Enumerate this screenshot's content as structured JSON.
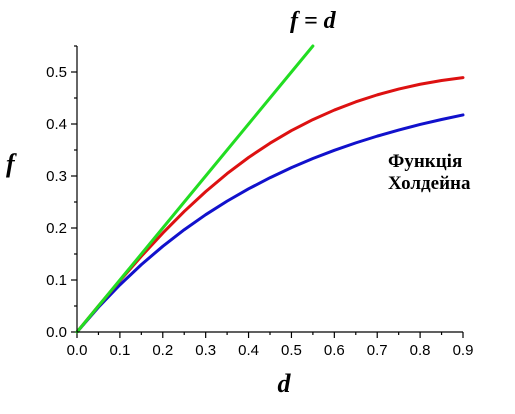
{
  "chart_data": {
    "type": "line",
    "xlabel": "d",
    "ylabel": "f",
    "xlim": [
      0.0,
      0.9
    ],
    "ylim": [
      0.0,
      0.55
    ],
    "xticks": [
      "0.0",
      "0.1",
      "0.2",
      "0.3",
      "0.4",
      "0.5",
      "0.6",
      "0.7",
      "0.8",
      "0.9"
    ],
    "yticks": [
      "0.0",
      "0.1",
      "0.2",
      "0.3",
      "0.4",
      "0.5"
    ],
    "grid": false,
    "annotations": [
      {
        "text": "f = d",
        "target": "green",
        "style": "italic-equation"
      },
      {
        "text": "Функція",
        "target": "red"
      },
      {
        "text": "Холдейна",
        "target": "red"
      }
    ],
    "series": [
      {
        "color": "#22dd22",
        "x": [
          0.0,
          0.1,
          0.2,
          0.3,
          0.4,
          0.5,
          0.55
        ],
        "y": [
          0.0,
          0.1,
          0.2,
          0.3,
          0.4,
          0.5,
          0.55
        ]
      },
      {
        "color": "#dd1111",
        "x": [
          0.0,
          0.05,
          0.1,
          0.15,
          0.2,
          0.25,
          0.3,
          0.35,
          0.4,
          0.45,
          0.5,
          0.55,
          0.6,
          0.65,
          0.7,
          0.75,
          0.8,
          0.85,
          0.9
        ],
        "y": [
          0.0,
          0.05,
          0.0987,
          0.1456,
          0.1902,
          0.2318,
          0.27,
          0.3046,
          0.3356,
          0.3631,
          0.3873,
          0.4085,
          0.4268,
          0.4426,
          0.456,
          0.4672,
          0.4764,
          0.4837,
          0.4892
        ]
      },
      {
        "color": "#1111cc",
        "x": [
          0.0,
          0.05,
          0.1,
          0.15,
          0.2,
          0.25,
          0.3,
          0.35,
          0.4,
          0.45,
          0.5,
          0.55,
          0.6,
          0.65,
          0.7,
          0.75,
          0.8,
          0.85,
          0.9
        ],
        "y": [
          0.0,
          0.0476,
          0.0906,
          0.1296,
          0.1648,
          0.1967,
          0.2256,
          0.2517,
          0.2753,
          0.2967,
          0.3161,
          0.3336,
          0.3494,
          0.3637,
          0.3767,
          0.3884,
          0.3991,
          0.4087,
          0.4174
        ]
      }
    ]
  }
}
